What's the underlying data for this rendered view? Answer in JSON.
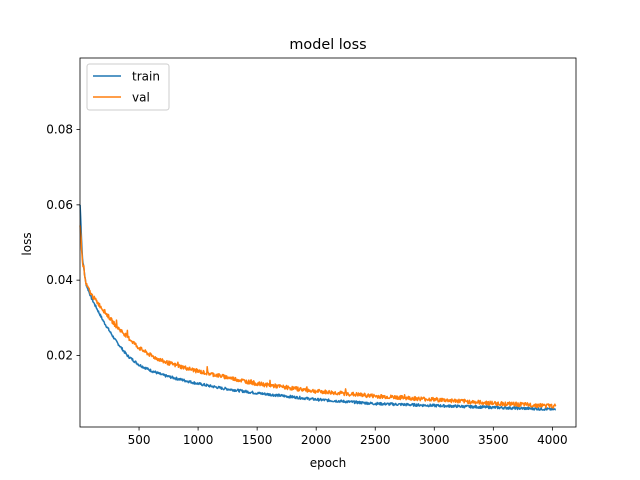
{
  "chart_data": {
    "type": "line",
    "title": "model loss",
    "xlabel": "epoch",
    "ylabel": "loss",
    "xlim": [
      0,
      4200
    ],
    "ylim": [
      0.001,
      0.099
    ],
    "xticks": [
      500,
      1000,
      1500,
      2000,
      2500,
      3000,
      3500,
      4000
    ],
    "xtick_labels": [
      "500",
      "1000",
      "1500",
      "2000",
      "2500",
      "3000",
      "3500",
      "4000"
    ],
    "yticks": [
      0.02,
      0.04,
      0.06,
      0.08
    ],
    "ytick_labels": [
      "0.02",
      "0.04",
      "0.06",
      "0.08"
    ],
    "grid": false,
    "legend_position": "top-left",
    "series": [
      {
        "name": "train",
        "color": "#1f77b4",
        "x": [
          1,
          20,
          50,
          100,
          150,
          200,
          300,
          400,
          500,
          600,
          700,
          800,
          1000,
          1200,
          1500,
          2000,
          2500,
          3000,
          3500,
          4000,
          4030
        ],
        "y": [
          0.06,
          0.046,
          0.039,
          0.035,
          0.032,
          0.029,
          0.024,
          0.02,
          0.0175,
          0.016,
          0.0148,
          0.014,
          0.0125,
          0.0113,
          0.01,
          0.0083,
          0.0072,
          0.0067,
          0.0062,
          0.0057,
          0.0056
        ]
      },
      {
        "name": "val",
        "color": "#ff7f0e",
        "x": [
          1,
          20,
          50,
          100,
          150,
          200,
          300,
          400,
          500,
          600,
          700,
          800,
          1000,
          1200,
          1500,
          2000,
          2500,
          3000,
          3500,
          4000,
          4030
        ],
        "y": [
          0.055,
          0.045,
          0.039,
          0.036,
          0.034,
          0.032,
          0.028,
          0.025,
          0.022,
          0.02,
          0.0185,
          0.0175,
          0.0158,
          0.0145,
          0.0125,
          0.0105,
          0.0092,
          0.0083,
          0.0073,
          0.0066,
          0.0065
        ]
      }
    ]
  }
}
